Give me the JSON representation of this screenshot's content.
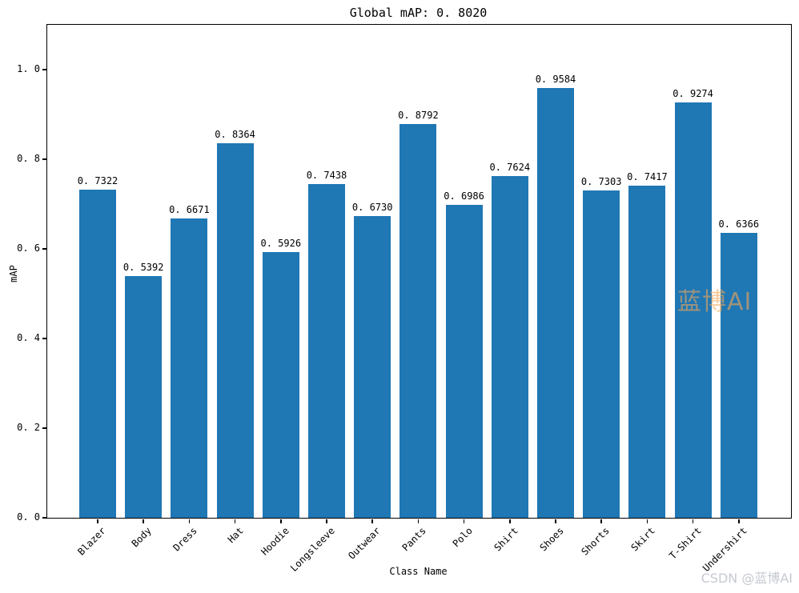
{
  "title": "Global mAP: 0.8020",
  "chart_data": {
    "type": "bar",
    "title": "Global mAP: 0.8020",
    "xlabel": "Class Name",
    "ylabel": "mAP",
    "categories": [
      "Blazer",
      "Body",
      "Dress",
      "Hat",
      "Hoodie",
      "Longsleeve",
      "Outwear",
      "Pants",
      "Polo",
      "Shirt",
      "Shoes",
      "Shorts",
      "Skirt",
      "T-Shirt",
      "Undershirt"
    ],
    "values": [
      0.7322,
      0.5392,
      0.6671,
      0.8364,
      0.5926,
      0.7438,
      0.673,
      0.8792,
      0.6986,
      0.7624,
      0.9584,
      0.7303,
      0.7417,
      0.9274,
      0.6366
    ],
    "bar_labels": [
      "0.7322",
      "0.5392",
      "0.6671",
      "0.8364",
      "0.5926",
      "0.7438",
      "0.6730",
      "0.8792",
      "0.6986",
      "0.7624",
      "0.9584",
      "0.7303",
      "0.7417",
      "0.9274",
      "0.6366"
    ],
    "yticks": [
      0.0,
      0.2,
      0.4,
      0.6,
      0.8,
      1.0
    ],
    "ytick_labels": [
      "0.0",
      "0.2",
      "0.4",
      "0.6",
      "0.8",
      "1.0"
    ],
    "ylim": [
      0,
      1.1
    ],
    "grid": false,
    "legend": false,
    "bar_color": "#1f77b4"
  },
  "watermarks": {
    "center": "蓝博AI",
    "bottom_right": "CSDN @蓝博AI"
  },
  "colors": {
    "bar": "#1f77b4",
    "axis": "#000000",
    "watermark_center": "#f3a758",
    "watermark_center_opacity": "0.6",
    "watermark_bottom": "#c5cad1"
  }
}
